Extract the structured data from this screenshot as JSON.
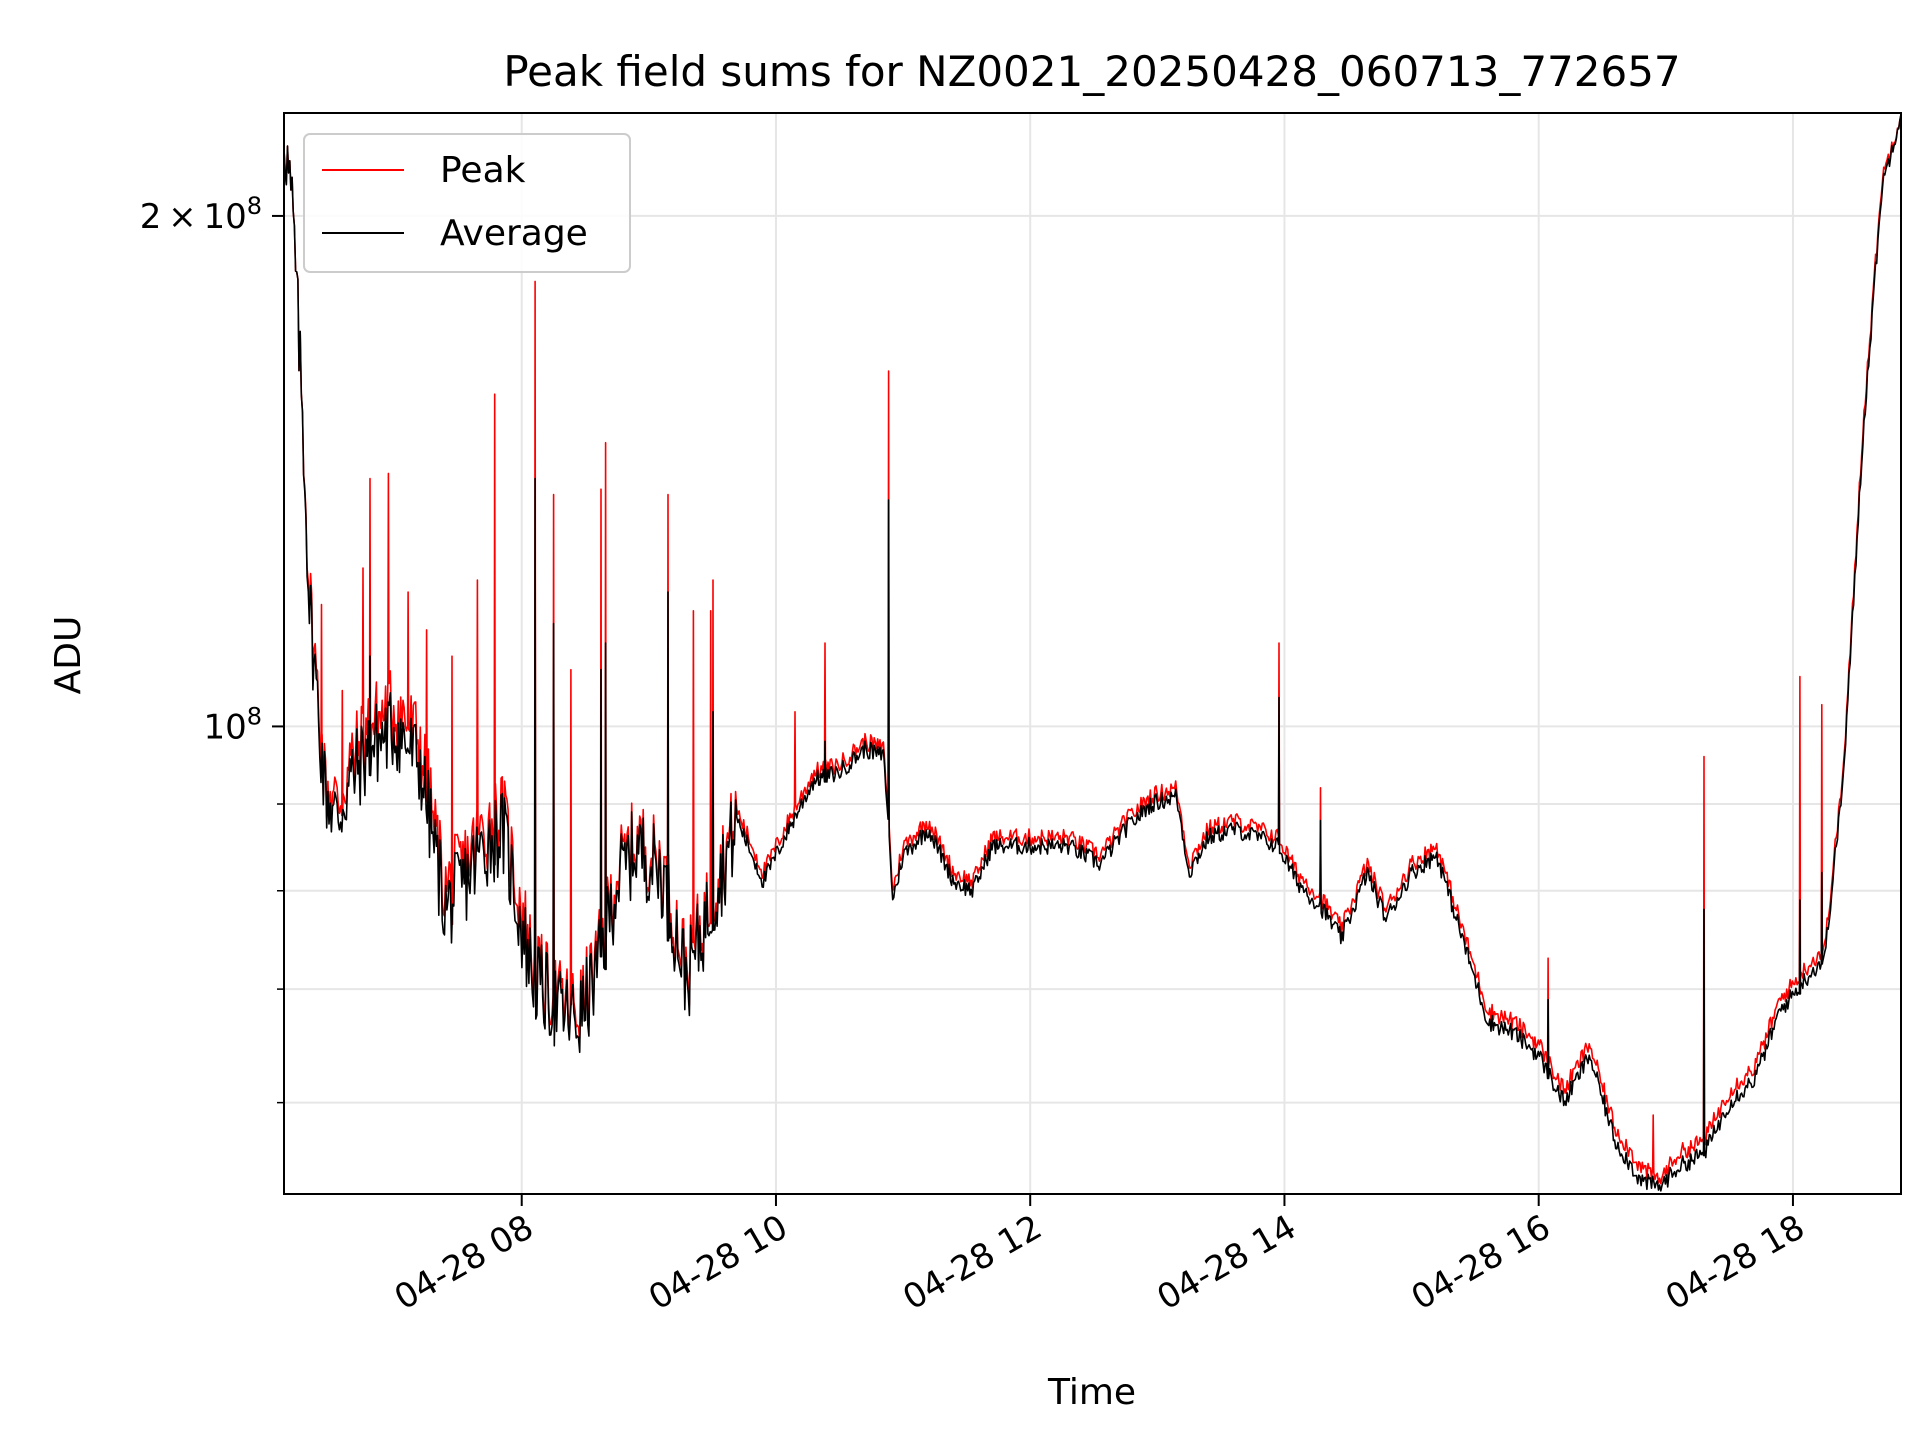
{
  "chart_data": {
    "type": "line",
    "title": "Peak field sums for NZ0021_20250428_060713_772657",
    "xlabel": "Time",
    "ylabel": "ADU",
    "yscale": "log",
    "xlim_hours": [
      6.13,
      18.85
    ],
    "ylim": [
      53000000,
      230000000
    ],
    "grid": true,
    "legend_position": "upper-left",
    "x_ticks": [
      {
        "hour": 8,
        "label": "04-28 08"
      },
      {
        "hour": 10,
        "label": "04-28 10"
      },
      {
        "hour": 12,
        "label": "04-28 12"
      },
      {
        "hour": 14,
        "label": "04-28 14"
      },
      {
        "hour": 16,
        "label": "04-28 16"
      },
      {
        "hour": 18,
        "label": "04-28 18"
      }
    ],
    "y_major_ticks": [
      {
        "value": 100000000,
        "base": "10",
        "exp": "8",
        "coef": ""
      },
      {
        "value": 200000000,
        "base": "10",
        "exp": "8",
        "coef": "2"
      }
    ],
    "y_minor_ticks": [
      60000000,
      70000000,
      80000000,
      90000000
    ],
    "times_sign": "×",
    "series": [
      {
        "name": "Peak",
        "color": "#ff0000",
        "x_hours": [
          6.13,
          6.2,
          6.28,
          6.33,
          6.45,
          6.55,
          6.65,
          6.8,
          7.0,
          7.2,
          7.4,
          7.55,
          7.7,
          7.85,
          8.0,
          8.1,
          8.3,
          8.45,
          8.6,
          8.75,
          8.9,
          9.1,
          9.3,
          9.5,
          9.7,
          9.9,
          10.1,
          10.3,
          10.5,
          10.7,
          10.85,
          10.92,
          11.0,
          11.2,
          11.4,
          11.55,
          11.7,
          11.9,
          12.1,
          12.3,
          12.55,
          12.75,
          12.95,
          13.15,
          13.25,
          13.4,
          13.6,
          13.8,
          13.95,
          14.1,
          14.3,
          14.45,
          14.65,
          14.8,
          15.0,
          15.2,
          15.4,
          15.6,
          15.8,
          16.0,
          16.2,
          16.4,
          16.6,
          16.8,
          16.95,
          17.1,
          17.3,
          17.5,
          17.7,
          17.9,
          18.1,
          18.25,
          18.4,
          18.55,
          18.7,
          18.85
        ],
        "values": [
          225000000,
          200000000,
          150000000,
          120000000,
          93000000,
          90000000,
          95000000,
          100000000,
          103000000,
          98000000,
          80000000,
          83000000,
          87000000,
          89000000,
          78000000,
          72000000,
          69000000,
          68000000,
          73000000,
          82000000,
          86000000,
          83000000,
          72000000,
          80000000,
          89000000,
          82000000,
          88000000,
          94000000,
          95000000,
          98000000,
          97000000,
          80000000,
          85000000,
          88000000,
          82000000,
          81000000,
          86000000,
          86000000,
          86000000,
          86000000,
          84000000,
          88000000,
          91000000,
          92000000,
          83000000,
          87000000,
          88000000,
          87000000,
          86000000,
          82000000,
          79000000,
          76000000,
          83000000,
          78000000,
          83000000,
          85000000,
          76000000,
          68000000,
          67000000,
          65000000,
          61000000,
          65000000,
          58000000,
          55000000,
          54000000,
          56000000,
          57000000,
          61000000,
          63000000,
          69000000,
          72000000,
          74000000,
          95000000,
          150000000,
          210000000,
          230000000
        ],
        "spikes": [
          {
            "x_hour": 6.42,
            "value": 118000000
          },
          {
            "x_hour": 6.58,
            "value": 105000000
          },
          {
            "x_hour": 6.75,
            "value": 124000000
          },
          {
            "x_hour": 6.8,
            "value": 140000000
          },
          {
            "x_hour": 6.95,
            "value": 141000000
          },
          {
            "x_hour": 7.1,
            "value": 120000000
          },
          {
            "x_hour": 7.25,
            "value": 114000000
          },
          {
            "x_hour": 7.45,
            "value": 110000000
          },
          {
            "x_hour": 7.65,
            "value": 122000000
          },
          {
            "x_hour": 7.78,
            "value": 157000000
          },
          {
            "x_hour": 8.1,
            "value": 183000000
          },
          {
            "x_hour": 8.25,
            "value": 137000000
          },
          {
            "x_hour": 8.38,
            "value": 108000000
          },
          {
            "x_hour": 8.62,
            "value": 138000000
          },
          {
            "x_hour": 8.66,
            "value": 147000000
          },
          {
            "x_hour": 9.15,
            "value": 137000000
          },
          {
            "x_hour": 9.35,
            "value": 117000000
          },
          {
            "x_hour": 9.48,
            "value": 117000000
          },
          {
            "x_hour": 9.5,
            "value": 122000000
          },
          {
            "x_hour": 10.15,
            "value": 102000000
          },
          {
            "x_hour": 10.38,
            "value": 112000000
          },
          {
            "x_hour": 10.88,
            "value": 162000000
          },
          {
            "x_hour": 13.95,
            "value": 112000000
          },
          {
            "x_hour": 14.28,
            "value": 92000000
          },
          {
            "x_hour": 16.07,
            "value": 73000000
          },
          {
            "x_hour": 16.9,
            "value": 59000000
          },
          {
            "x_hour": 17.3,
            "value": 96000000
          },
          {
            "x_hour": 18.05,
            "value": 107000000
          },
          {
            "x_hour": 18.22,
            "value": 103000000
          }
        ]
      },
      {
        "name": "Average",
        "color": "#000000",
        "x_hours": [
          6.13,
          6.2,
          6.28,
          6.33,
          6.45,
          6.55,
          6.65,
          6.8,
          7.0,
          7.2,
          7.4,
          7.55,
          7.7,
          7.85,
          8.0,
          8.1,
          8.3,
          8.45,
          8.6,
          8.75,
          8.9,
          9.1,
          9.3,
          9.5,
          9.7,
          9.9,
          10.1,
          10.3,
          10.5,
          10.7,
          10.85,
          10.92,
          11.0,
          11.2,
          11.4,
          11.55,
          11.7,
          11.9,
          12.1,
          12.3,
          12.55,
          12.75,
          12.95,
          13.15,
          13.25,
          13.4,
          13.6,
          13.8,
          13.95,
          14.1,
          14.3,
          14.45,
          14.65,
          14.8,
          15.0,
          15.2,
          15.4,
          15.6,
          15.8,
          16.0,
          16.2,
          16.4,
          16.6,
          16.8,
          16.95,
          17.1,
          17.3,
          17.5,
          17.7,
          17.9,
          18.1,
          18.25,
          18.4,
          18.55,
          18.7,
          18.85
        ],
        "values": [
          225000000,
          200000000,
          150000000,
          118000000,
          92000000,
          88000000,
          93000000,
          97000000,
          100000000,
          95000000,
          78000000,
          81000000,
          85000000,
          87000000,
          76000000,
          71000000,
          68000000,
          67000000,
          72000000,
          81000000,
          85000000,
          82000000,
          71000000,
          79000000,
          88000000,
          81000000,
          87000000,
          93000000,
          94000000,
          97000000,
          96000000,
          79000000,
          84000000,
          87000000,
          81000000,
          80000000,
          85000000,
          85000000,
          85000000,
          85000000,
          83000000,
          87000000,
          90000000,
          91000000,
          82000000,
          86000000,
          87000000,
          86000000,
          85000000,
          81000000,
          78000000,
          75000000,
          82000000,
          77000000,
          82000000,
          84000000,
          75000000,
          67000000,
          66000000,
          64000000,
          60000000,
          64000000,
          57000000,
          54000000,
          53500000,
          55000000,
          56000000,
          60000000,
          62000000,
          68000000,
          71000000,
          73000000,
          94000000,
          148000000,
          208000000,
          230000000
        ],
        "spikes": [
          {
            "x_hour": 6.8,
            "value": 110000000
          },
          {
            "x_hour": 8.1,
            "value": 140000000
          },
          {
            "x_hour": 8.25,
            "value": 115000000
          },
          {
            "x_hour": 8.62,
            "value": 108000000
          },
          {
            "x_hour": 8.66,
            "value": 112000000
          },
          {
            "x_hour": 9.15,
            "value": 120000000
          },
          {
            "x_hour": 9.5,
            "value": 102000000
          },
          {
            "x_hour": 10.38,
            "value": 98000000
          },
          {
            "x_hour": 10.88,
            "value": 136000000
          },
          {
            "x_hour": 13.95,
            "value": 104000000
          },
          {
            "x_hour": 14.28,
            "value": 88000000
          },
          {
            "x_hour": 16.07,
            "value": 69000000
          },
          {
            "x_hour": 17.3,
            "value": 78000000
          },
          {
            "x_hour": 18.05,
            "value": 79000000
          },
          {
            "x_hour": 18.22,
            "value": 82000000
          }
        ]
      }
    ]
  }
}
